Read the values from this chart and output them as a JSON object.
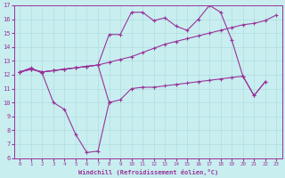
{
  "xlabel": "Windchill (Refroidissement éolien,°C)",
  "xlim": [
    -0.5,
    23.5
  ],
  "ylim": [
    6,
    17
  ],
  "yticks": [
    6,
    7,
    8,
    9,
    10,
    11,
    12,
    13,
    14,
    15,
    16,
    17
  ],
  "xticks": [
    0,
    1,
    2,
    3,
    4,
    5,
    6,
    7,
    8,
    9,
    10,
    11,
    12,
    13,
    14,
    15,
    16,
    17,
    18,
    19,
    20,
    21,
    22,
    23
  ],
  "background_color": "#c8eef0",
  "line_color": "#993399",
  "grid_color": "#b0dde0",
  "line1_x": [
    0,
    1,
    2,
    3,
    4,
    5,
    6,
    7,
    8
  ],
  "line1_y": [
    12.2,
    12.5,
    12.1,
    10.0,
    9.5,
    7.7,
    6.4,
    6.5,
    10.0
  ],
  "line2_x": [
    0,
    1,
    2,
    3,
    4,
    5,
    6,
    7,
    8,
    9,
    10,
    11,
    12,
    13,
    14,
    15,
    16,
    17,
    18,
    19,
    20,
    21,
    22,
    23
  ],
  "line2_y": [
    12.2,
    12.4,
    12.2,
    12.3,
    12.4,
    12.5,
    12.6,
    12.7,
    12.9,
    13.1,
    13.3,
    13.6,
    13.9,
    14.2,
    14.4,
    14.6,
    14.8,
    15.0,
    15.2,
    15.4,
    15.6,
    15.7,
    15.9,
    16.3
  ],
  "line3_x": [
    0,
    1,
    2,
    3,
    4,
    5,
    6,
    7,
    8,
    9,
    10,
    11,
    12,
    13,
    14,
    15,
    16,
    17,
    18,
    19,
    20,
    21,
    22
  ],
  "line3_y": [
    12.2,
    12.4,
    12.2,
    12.3,
    12.4,
    12.5,
    12.6,
    12.7,
    14.9,
    14.9,
    16.5,
    16.5,
    15.9,
    16.1,
    15.5,
    15.2,
    16.0,
    17.0,
    16.5,
    14.5,
    11.9,
    10.5,
    11.5
  ],
  "line4_x": [
    0,
    1,
    2,
    3,
    4,
    5,
    6,
    7,
    8,
    9,
    10,
    11,
    12,
    13,
    14,
    15,
    16,
    17,
    18,
    19,
    20,
    21,
    22
  ],
  "line4_y": [
    12.2,
    12.4,
    12.2,
    12.3,
    12.4,
    12.5,
    12.6,
    12.7,
    10.0,
    10.2,
    11.0,
    11.1,
    11.1,
    11.2,
    11.3,
    11.4,
    11.5,
    11.6,
    11.7,
    11.8,
    11.9,
    10.5,
    11.5
  ]
}
